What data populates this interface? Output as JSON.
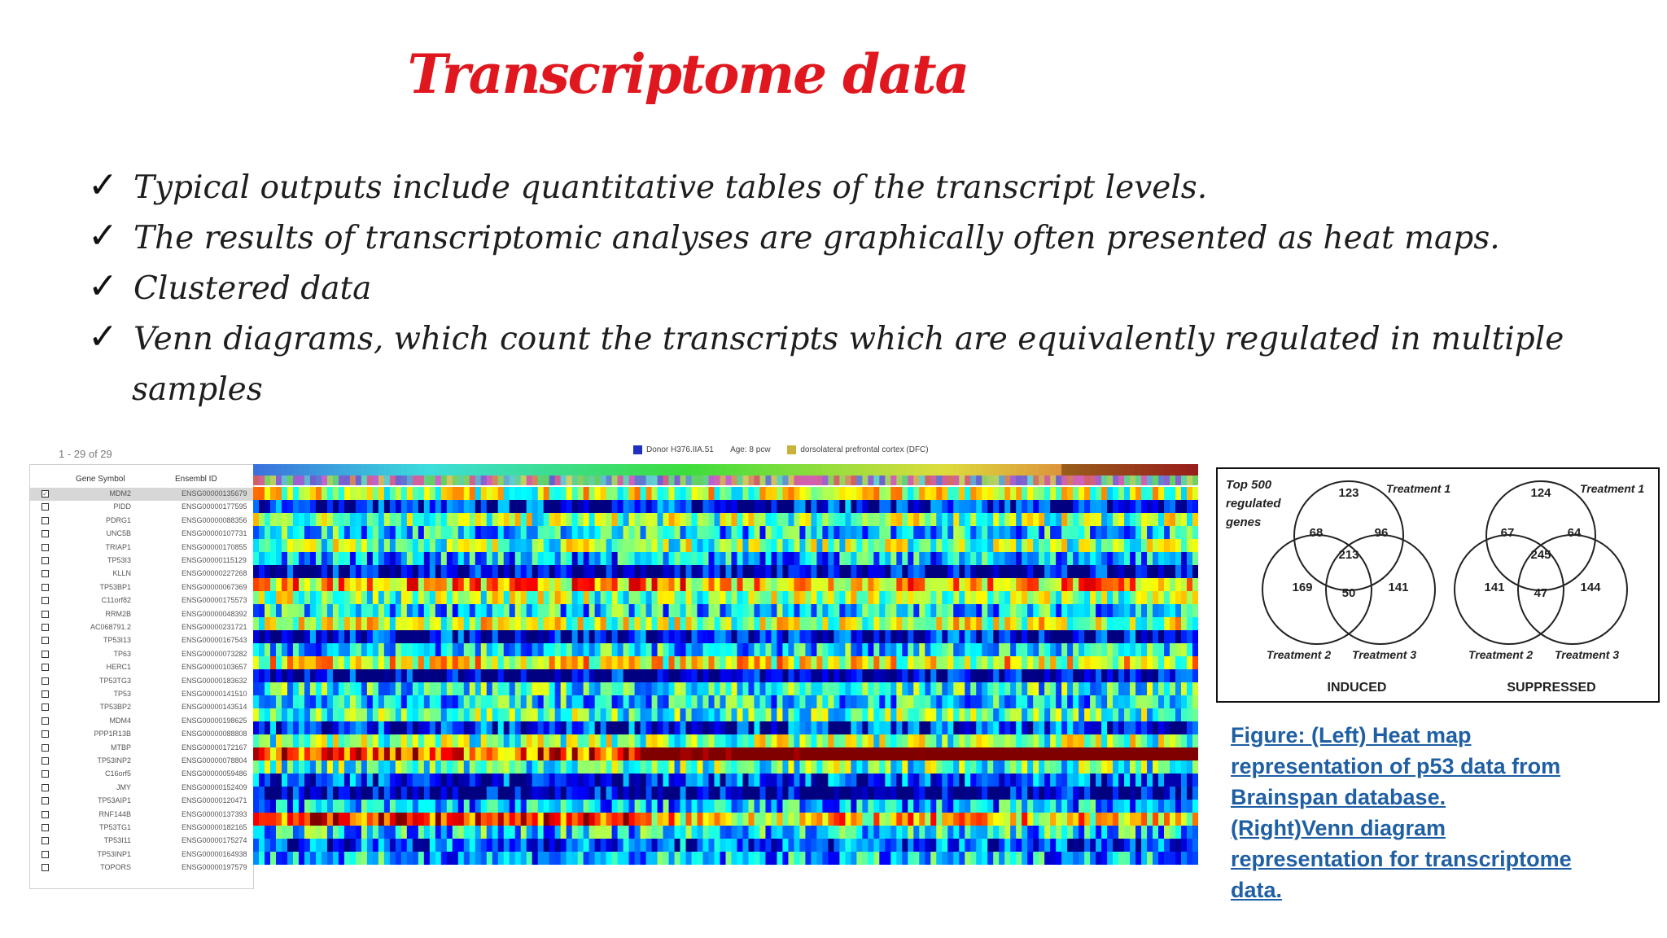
{
  "title": "Transcriptome data",
  "bullets": [
    "Typical outputs include quantitative tables of the transcript levels.",
    "The results of transcriptomic analyses are graphically often presented as heat maps.",
    "Clustered data",
    "Venn diagrams, which count the transcripts which are equivalently regulated in multiple",
    "samples"
  ],
  "check_mark": "✓",
  "heatmap": {
    "count_label": "1 - 29 of 29",
    "legend": {
      "donor": "Donor H376.IIA.51",
      "age": "Age: 8 pcw",
      "structure": "dorsolateral prefrontal cortex (DFC)",
      "donor_color": "#1f2fbf",
      "structure_color": "#c9b23a"
    },
    "col_gene": "Gene Symbol",
    "col_ensembl": "Ensembl ID",
    "rows": [
      {
        "gene": "MDM2",
        "ens": "ENSG00000135679"
      },
      {
        "gene": "PIDD",
        "ens": "ENSG00000177595"
      },
      {
        "gene": "PDRG1",
        "ens": "ENSG00000088356"
      },
      {
        "gene": "UNC5B",
        "ens": "ENSG00000107731"
      },
      {
        "gene": "TRIAP1",
        "ens": "ENSG00000170855"
      },
      {
        "gene": "TP53I3",
        "ens": "ENSG00000115129"
      },
      {
        "gene": "KLLN",
        "ens": "ENSG00000227268"
      },
      {
        "gene": "TP53BP1",
        "ens": "ENSG00000067369"
      },
      {
        "gene": "C11orf82",
        "ens": "ENSG00000175573"
      },
      {
        "gene": "RRM2B",
        "ens": "ENSG00000048392"
      },
      {
        "gene": "AC068791.2",
        "ens": "ENSG00000231721"
      },
      {
        "gene": "TP53I13",
        "ens": "ENSG00000167543"
      },
      {
        "gene": "TP63",
        "ens": "ENSG00000073282"
      },
      {
        "gene": "HERC1",
        "ens": "ENSG00000103657"
      },
      {
        "gene": "TP53TG3",
        "ens": "ENSG00000183632"
      },
      {
        "gene": "TP53",
        "ens": "ENSG00000141510"
      },
      {
        "gene": "TP53BP2",
        "ens": "ENSG00000143514"
      },
      {
        "gene": "MDM4",
        "ens": "ENSG00000198625"
      },
      {
        "gene": "PPP1R13B",
        "ens": "ENSG00000088808"
      },
      {
        "gene": "MTBP",
        "ens": "ENSG00000172167"
      },
      {
        "gene": "TP53INP2",
        "ens": "ENSG00000078804"
      },
      {
        "gene": "C16orf5",
        "ens": "ENSG00000059486"
      },
      {
        "gene": "JMY",
        "ens": "ENSG00000152409"
      },
      {
        "gene": "TP53AIP1",
        "ens": "ENSG00000120471"
      },
      {
        "gene": "RNF144B",
        "ens": "ENSG00000137393"
      },
      {
        "gene": "TP53TG1",
        "ens": "ENSG00000182165"
      },
      {
        "gene": "TP53I11",
        "ens": "ENSG00000175274"
      },
      {
        "gene": "TP53INP1",
        "ens": "ENSG00000164938"
      },
      {
        "gene": "TOPORS",
        "ens": "ENSG00000197579"
      }
    ],
    "row_levels": [
      0.55,
      0.12,
      0.5,
      0.35,
      0.5,
      0.3,
      0.05,
      0.7,
      0.5,
      0.35,
      0.55,
      0.1,
      0.35,
      0.6,
      0.05,
      0.4,
      0.35,
      0.45,
      0.15,
      0.5,
      0.8,
      0.45,
      0.15,
      0.05,
      0.3,
      0.65,
      0.35,
      0.2,
      0.3
    ]
  },
  "venn": {
    "intro": [
      "Top 500",
      "regulated",
      "genes"
    ],
    "induced": {
      "label": "INDUCED",
      "t1": "Treatment 1",
      "t2": "Treatment 2",
      "t3": "Treatment 3",
      "a": "123",
      "ab": "68",
      "ac": "96",
      "abc": "213",
      "b": "169",
      "bc": "50",
      "c": "141"
    },
    "suppressed": {
      "label": "SUPPRESSED",
      "t1": "Treatment 1",
      "t2": "Treatment 2",
      "t3": "Treatment 3",
      "a": "124",
      "ab": "67",
      "ac": "64",
      "abc": "245",
      "b": "141",
      "bc": "47",
      "c": "144"
    }
  },
  "caption": [
    "Figure: (Left) Heat map",
    "representation of p53 data from",
    "Brainspan database.",
    "(Right)Venn diagram",
    "representation for transcriptome",
    "data."
  ]
}
